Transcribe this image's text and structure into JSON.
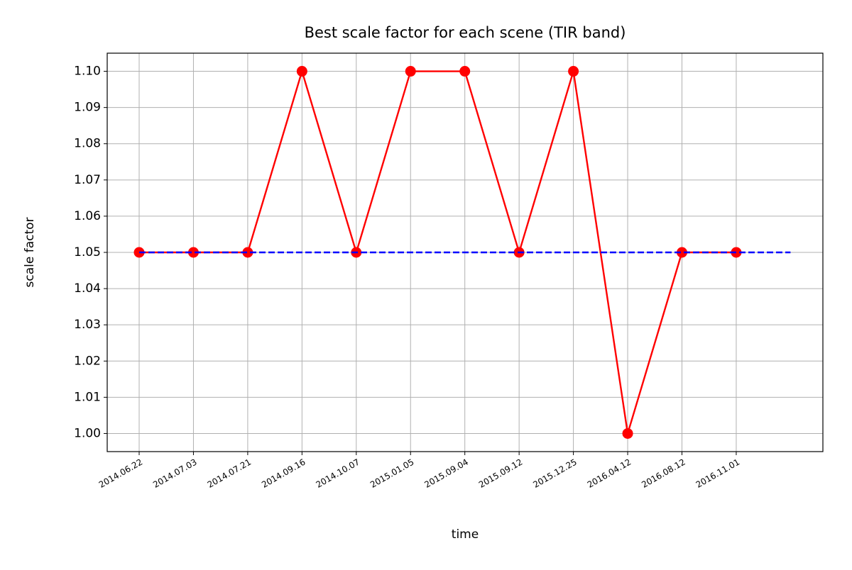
{
  "chart_data": {
    "type": "line",
    "title": "Best scale factor for each scene (TIR band)",
    "xlabel": "time",
    "ylabel": "scale factor",
    "categories": [
      "2014.06.22",
      "2014.07.03",
      "2014.07.21",
      "2014.09.16",
      "2014.10.07",
      "2015.01.05",
      "2015.09.04",
      "2015.09.12",
      "2015.12.25",
      "2016.04.12",
      "2016.08.12",
      "2016.11.01",
      null
    ],
    "series": [
      {
        "color": "#ff0000",
        "linestyle": "solid",
        "marker": true,
        "values": [
          1.05,
          1.05,
          1.05,
          1.1,
          1.05,
          1.1,
          1.1,
          1.05,
          1.1,
          1.0,
          1.05,
          1.05,
          null
        ]
      },
      {
        "color": "#0000ff",
        "linestyle": "dashed",
        "marker": false,
        "values": [
          1.05,
          1.05,
          1.05,
          1.05,
          1.05,
          1.05,
          1.05,
          1.05,
          1.05,
          1.05,
          1.05,
          1.05,
          1.05
        ]
      }
    ],
    "ylim": [
      0.995,
      1.105
    ],
    "yticks": [
      {
        "value": 1.0,
        "label": "1.00"
      },
      1.01,
      1.02,
      1.03,
      1.04,
      1.05,
      1.06,
      1.07,
      1.08,
      1.09,
      {
        "value": 1.1,
        "label": "1.10"
      }
    ],
    "grid": true
  }
}
